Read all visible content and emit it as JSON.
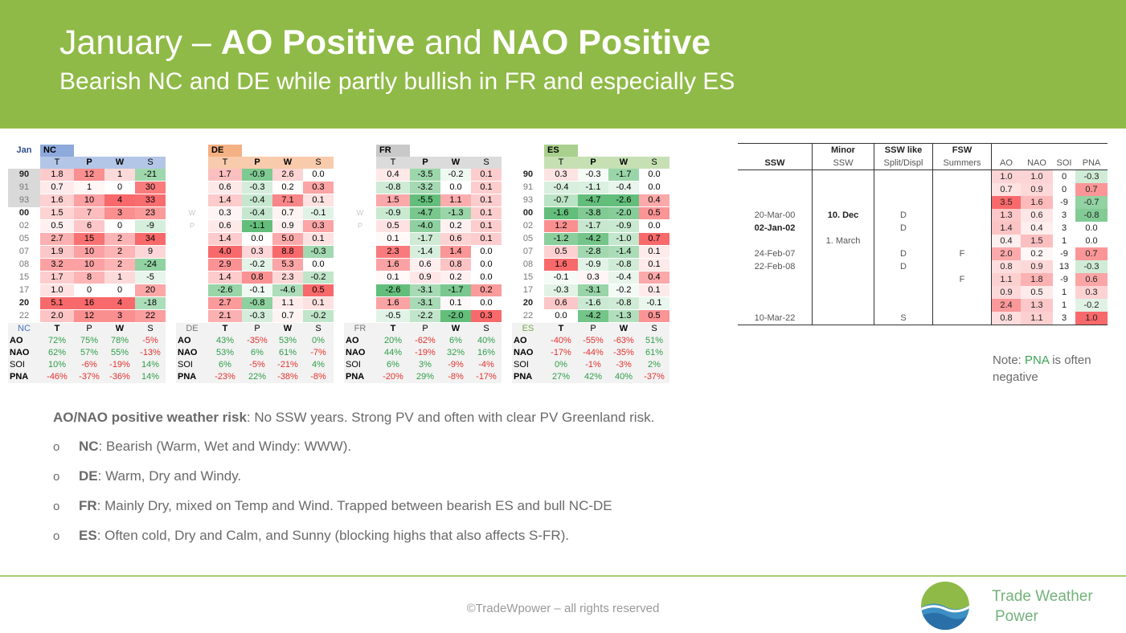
{
  "header": {
    "title_plain1": "January – ",
    "title_bold1": "AO Positive",
    "title_plain2": " and ",
    "title_bold2": "NAO Positive",
    "subtitle": "Bearish NC and DE while partly bullish in FR and especially ES"
  },
  "heatmap": {
    "month": "Jan",
    "regions": [
      "NC",
      "DE",
      "FR",
      "ES"
    ],
    "vars": [
      "T",
      "P",
      "W",
      "S"
    ],
    "sep_labels": [
      "W",
      "P",
      "W",
      "W"
    ],
    "years": [
      "90",
      "91",
      "93",
      "00",
      "02",
      "05",
      "07",
      "08",
      "15",
      "17",
      "20",
      "22"
    ],
    "bold_years": [
      true,
      false,
      false,
      true,
      false,
      false,
      false,
      false,
      false,
      false,
      true,
      false
    ],
    "values": {
      "NC": [
        [
          "1.8",
          "12",
          "1",
          "-21"
        ],
        [
          "0.7",
          "1",
          "0",
          "30"
        ],
        [
          "1.6",
          "10",
          "4",
          "33"
        ],
        [
          "1.5",
          "7",
          "3",
          "23"
        ],
        [
          "0.5",
          "6",
          "0",
          "-9"
        ],
        [
          "2.7",
          "15",
          "2",
          "34"
        ],
        [
          "1.9",
          "10",
          "2",
          "9"
        ],
        [
          "3.2",
          "10",
          "2",
          "-24"
        ],
        [
          "1.7",
          "8",
          "1",
          "-5"
        ],
        [
          "1.0",
          "0",
          "0",
          "20"
        ],
        [
          "5.1",
          "16",
          "4",
          "-18"
        ],
        [
          "2.0",
          "12",
          "3",
          "22"
        ]
      ],
      "DE": [
        [
          "1.7",
          "-0.9",
          "2.6",
          "0.0"
        ],
        [
          "0.6",
          "-0.3",
          "0.2",
          "0.3"
        ],
        [
          "1.4",
          "-0.4",
          "7.1",
          "0.1"
        ],
        [
          "0.3",
          "-0.4",
          "0.7",
          "-0.1"
        ],
        [
          "0.6",
          "-1.1",
          "0.9",
          "0.3"
        ],
        [
          "1.4",
          "0.0",
          "5.0",
          "0.1"
        ],
        [
          "4.0",
          "0.3",
          "8.8",
          "-0.3"
        ],
        [
          "2.9",
          "-0.2",
          "5.3",
          "0.0"
        ],
        [
          "1.4",
          "0.8",
          "2.3",
          "-0.2"
        ],
        [
          "-2.6",
          "-0.1",
          "-4.6",
          "0.5"
        ],
        [
          "2.7",
          "-0.8",
          "1.1",
          "0.1"
        ],
        [
          "2.1",
          "-0.3",
          "0.7",
          "-0.2"
        ]
      ],
      "FR": [
        [
          "0.4",
          "-3.5",
          "-0.2",
          "0.1"
        ],
        [
          "-0.8",
          "-3.2",
          "0.0",
          "0.1"
        ],
        [
          "1.5",
          "-5.5",
          "1.1",
          "0.1"
        ],
        [
          "-0.9",
          "-4.7",
          "-1.3",
          "0.1"
        ],
        [
          "0.5",
          "-4.0",
          "0.2",
          "0.1"
        ],
        [
          "0.1",
          "-1.7",
          "0.6",
          "0.1"
        ],
        [
          "2.3",
          "-1.4",
          "1.4",
          "0.0"
        ],
        [
          "1.6",
          "0.6",
          "0.8",
          "0.0"
        ],
        [
          "0.1",
          "0.9",
          "0.2",
          "0.0"
        ],
        [
          "-2.6",
          "-3.1",
          "-1.7",
          "0.2"
        ],
        [
          "1.6",
          "-3.1",
          "0.1",
          "0.0"
        ],
        [
          "-0.5",
          "-2.2",
          "-2.0",
          "0.3"
        ]
      ],
      "ES": [
        [
          "0.3",
          "-0.3",
          "-1.7",
          "0.0"
        ],
        [
          "-0.4",
          "-1.1",
          "-0.4",
          "0.0"
        ],
        [
          "-0.7",
          "-4.7",
          "-2.6",
          "0.4"
        ],
        [
          "-1.6",
          "-3.8",
          "-2.0",
          "0.5"
        ],
        [
          "1.2",
          "-1.7",
          "-0.9",
          "0.0"
        ],
        [
          "-1.2",
          "-4.2",
          "-1.0",
          "0.7"
        ],
        [
          "0.5",
          "-2.8",
          "-1.4",
          "0.1"
        ],
        [
          "1.6",
          "-0.9",
          "-0.8",
          "0.1"
        ],
        [
          "-0.1",
          "0.3",
          "-0.4",
          "0.4"
        ],
        [
          "-0.3",
          "-3.1",
          "-0.2",
          "0.1"
        ],
        [
          "0.6",
          "-1.6",
          "-0.8",
          "-0.1"
        ],
        [
          "0.0",
          "-4.2",
          "-1.3",
          "0.5"
        ]
      ]
    },
    "corr_labels": [
      "AO",
      "NAO",
      "SOI",
      "PNA"
    ],
    "corr": {
      "NC": [
        [
          "72%",
          "75%",
          "78%",
          "-5%"
        ],
        [
          "62%",
          "57%",
          "55%",
          "-13%"
        ],
        [
          "10%",
          "-6%",
          "-19%",
          "14%"
        ],
        [
          "-46%",
          "-37%",
          "-36%",
          "14%"
        ]
      ],
      "DE": [
        [
          "43%",
          "-35%",
          "53%",
          "0%"
        ],
        [
          "53%",
          "6%",
          "61%",
          "-7%"
        ],
        [
          "6%",
          "-5%",
          "-21%",
          "4%"
        ],
        [
          "-23%",
          "22%",
          "-38%",
          "-8%"
        ]
      ],
      "FR": [
        [
          "20%",
          "-62%",
          "6%",
          "40%"
        ],
        [
          "44%",
          "-19%",
          "32%",
          "16%"
        ],
        [
          "6%",
          "3%",
          "-9%",
          "-4%"
        ],
        [
          "-20%",
          "29%",
          "-8%",
          "-17%"
        ]
      ],
      "ES": [
        [
          "-40%",
          "-55%",
          "-63%",
          "51%"
        ],
        [
          "-17%",
          "-44%",
          "-35%",
          "61%"
        ],
        [
          "0%",
          "-1%",
          "-3%",
          "2%"
        ],
        [
          "27%",
          "42%",
          "40%",
          "-37%"
        ]
      ]
    },
    "colors": {
      "warm": "#f8696b",
      "cool": "#63be7b"
    }
  },
  "ssw_table": {
    "header1": [
      "",
      "Minor",
      "SSW like",
      "FSW",
      "",
      "",
      "",
      ""
    ],
    "header2": [
      "SSW",
      "SSW",
      "Split/Displ",
      "Summers",
      "AO",
      "NAO",
      "SOI",
      "PNA"
    ],
    "rows": [
      [
        "",
        "",
        "",
        "",
        "1.0",
        "1.0",
        "0",
        "-0.3"
      ],
      [
        "",
        "",
        "",
        "",
        "0.7",
        "0.9",
        "0",
        "0.7"
      ],
      [
        "",
        "",
        "",
        "",
        "3.5",
        "1.6",
        "-9",
        "-0.7"
      ],
      [
        "20-Mar-00",
        "10. Dec",
        "D",
        "",
        "1.3",
        "0.6",
        "3",
        "-0.8"
      ],
      [
        "02-Jan-02",
        "",
        "D",
        "",
        "1.4",
        "0.4",
        "3",
        "0.0"
      ],
      [
        "",
        "1. March",
        "",
        "",
        "0.4",
        "1.5",
        "1",
        "0.0"
      ],
      [
        "24-Feb-07",
        "",
        "D",
        "F",
        "2.0",
        "0.2",
        "-9",
        "0.7"
      ],
      [
        "22-Feb-08",
        "",
        "D",
        "",
        "0.8",
        "0.9",
        "13",
        "-0.3"
      ],
      [
        "",
        "",
        "",
        "F",
        "1.1",
        "1.8",
        "-9",
        "0.6"
      ],
      [
        "",
        "",
        "",
        "",
        "0.9",
        "0.5",
        "1",
        "0.3"
      ],
      [
        "",
        "",
        "",
        "",
        "2.4",
        "1.3",
        "1",
        "-0.2"
      ],
      [
        "10-Mar-22",
        "",
        "S",
        "",
        "0.8",
        "1.1",
        "3",
        "1.0"
      ]
    ]
  },
  "note": {
    "pre": "Note: ",
    "pna": "PNA",
    "post": " is often negative"
  },
  "risk": {
    "bold": "AO/NAO positive weather risk",
    "text": ": No SSW years. Strong PV and often with clear PV Greenland risk."
  },
  "bullets": [
    {
      "bold": "NC",
      "text": ": Bearish (Warm, Wet and Windy: WWW)."
    },
    {
      "bold": "DE",
      "text": ": Warm, Dry and Windy."
    },
    {
      "bold": "FR",
      "text": ": Mainly Dry, mixed on Temp and Wind. Trapped between bearish ES and bull NC-DE"
    },
    {
      "bold": "ES",
      "text": ": Often cold, Dry and Calm, and Sunny (blocking highs that also affects S-FR)."
    }
  ],
  "footer": {
    "copyright": "©TradeWpower – all rights reserved",
    "brand1": "Trade Weather",
    "brand2": "Power"
  }
}
